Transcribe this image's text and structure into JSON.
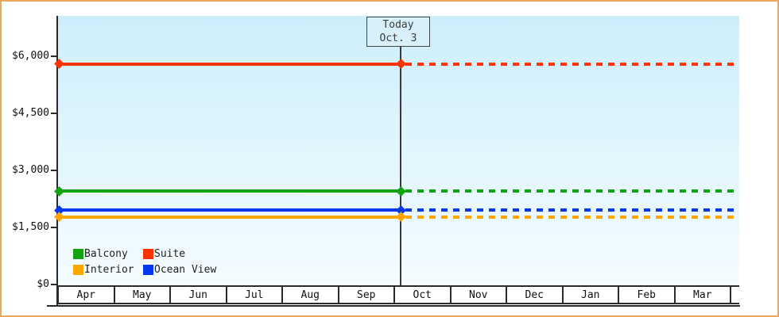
{
  "window": {
    "border_color": "#eaa75f",
    "background_color": "#ffffff",
    "plot_gradient_top": "#cceffb",
    "plot_gradient_bottom": "#f4fcff"
  },
  "today_box": {
    "line1": "Today",
    "line2": "Oct. 3"
  },
  "legend": {
    "items": [
      {
        "id": "balcony",
        "label": "Balcony",
        "color": "#12a212"
      },
      {
        "id": "suite",
        "label": "Suite",
        "color": "#ff3300"
      },
      {
        "id": "interior",
        "label": "Interior",
        "color": "#ffa502"
      },
      {
        "id": "ocean-view",
        "label": "Ocean View",
        "color": "#0538ee"
      }
    ]
  },
  "chart_data": {
    "type": "line",
    "title": "",
    "xlabel": "",
    "ylabel": "",
    "categories": [
      "Apr",
      "May",
      "Jun",
      "Jul",
      "Aug",
      "Sep",
      "Oct",
      "Nov",
      "Dec",
      "Jan",
      "Feb",
      "Mar"
    ],
    "ylim": [
      0,
      7050
    ],
    "y_ticks": [
      {
        "label": "$6,000",
        "value": 6000
      },
      {
        "label": "$4,500",
        "value": 4500
      },
      {
        "label": "$3,000",
        "value": 3000
      },
      {
        "label": "$1,500",
        "value": 1500
      },
      {
        "label": "$0",
        "value": 0
      }
    ],
    "grid": false,
    "legend_position": "bottom-left inside plot",
    "today_marker": {
      "month": "Oct",
      "day": 3,
      "label": "Today Oct. 3"
    },
    "series": [
      {
        "name": "Suite",
        "id": "suite",
        "color": "#ff3300",
        "value": 5800,
        "values": [
          5800,
          5800,
          5800,
          5800,
          5800,
          5800,
          5800,
          5800,
          5800,
          5800,
          5800,
          5800
        ]
      },
      {
        "name": "Balcony",
        "id": "balcony",
        "color": "#12a212",
        "value": 2450,
        "values": [
          2450,
          2450,
          2450,
          2450,
          2450,
          2450,
          2450,
          2450,
          2450,
          2450,
          2450,
          2450
        ]
      },
      {
        "name": "Ocean View",
        "id": "ocean-view",
        "color": "#0538ee",
        "value": 1950,
        "values": [
          1950,
          1950,
          1950,
          1950,
          1950,
          1950,
          1950,
          1950,
          1950,
          1950,
          1950,
          1950
        ]
      },
      {
        "name": "Interior",
        "id": "interior",
        "color": "#ffa502",
        "value": 1775,
        "values": [
          1775,
          1775,
          1775,
          1775,
          1775,
          1775,
          1775,
          1775,
          1775,
          1775,
          1775,
          1775
        ]
      }
    ],
    "line_style": "solid from Apr to today (Oct 3), dashed projection from today to end of Mar, diamond markers at line start and at today"
  }
}
